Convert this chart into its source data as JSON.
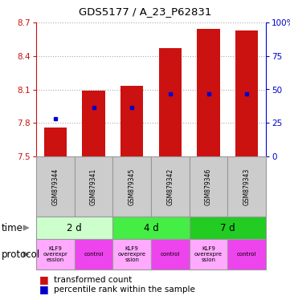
{
  "title": "GDS5177 / A_23_P62831",
  "samples": [
    "GSM879344",
    "GSM879341",
    "GSM879345",
    "GSM879342",
    "GSM879346",
    "GSM879343"
  ],
  "bar_bottom": 7.5,
  "bar_tops": [
    7.76,
    8.09,
    8.13,
    8.47,
    8.64,
    8.63
  ],
  "percentile_values": [
    7.84,
    7.94,
    7.94,
    8.06,
    8.06,
    8.06
  ],
  "ylim_left": [
    7.5,
    8.7
  ],
  "ylim_right": [
    0,
    100
  ],
  "yticks_left": [
    7.5,
    7.8,
    8.1,
    8.4,
    8.7
  ],
  "ytick_labels_left": [
    "7.5",
    "7.8",
    "8.1",
    "8.4",
    "8.7"
  ],
  "yticks_right": [
    0,
    25,
    50,
    75,
    100
  ],
  "ytick_labels_right": [
    "0",
    "25",
    "50",
    "75",
    "100%"
  ],
  "bar_color": "#cc1111",
  "percentile_color": "#0000cc",
  "time_groups": [
    {
      "label": "2 d",
      "start": 0,
      "end": 2,
      "color": "#ccffcc"
    },
    {
      "label": "4 d",
      "start": 2,
      "end": 4,
      "color": "#44ee44"
    },
    {
      "label": "7 d",
      "start": 4,
      "end": 6,
      "color": "#22cc22"
    }
  ],
  "protocol_groups": [
    {
      "label": "KLF9\noverexpr\nession",
      "start": 0,
      "end": 1,
      "color": "#ffaaff"
    },
    {
      "label": "control",
      "start": 1,
      "end": 2,
      "color": "#ee44ee"
    },
    {
      "label": "KLF9\noverexpre\nssion",
      "start": 2,
      "end": 3,
      "color": "#ffaaff"
    },
    {
      "label": "control",
      "start": 3,
      "end": 4,
      "color": "#ee44ee"
    },
    {
      "label": "KLF9\noverexpre\nssion",
      "start": 4,
      "end": 5,
      "color": "#ffaaff"
    },
    {
      "label": "control",
      "start": 5,
      "end": 6,
      "color": "#ee44ee"
    }
  ],
  "legend_bar_label": "transformed count",
  "legend_pct_label": "percentile rank within the sample",
  "left_axis_color": "#cc1111",
  "right_axis_color": "#0000cc",
  "time_label": "time",
  "protocol_label": "protocol",
  "grid_color": "#aaaaaa",
  "sample_box_color": "#cccccc",
  "sample_box_edge": "#999999"
}
